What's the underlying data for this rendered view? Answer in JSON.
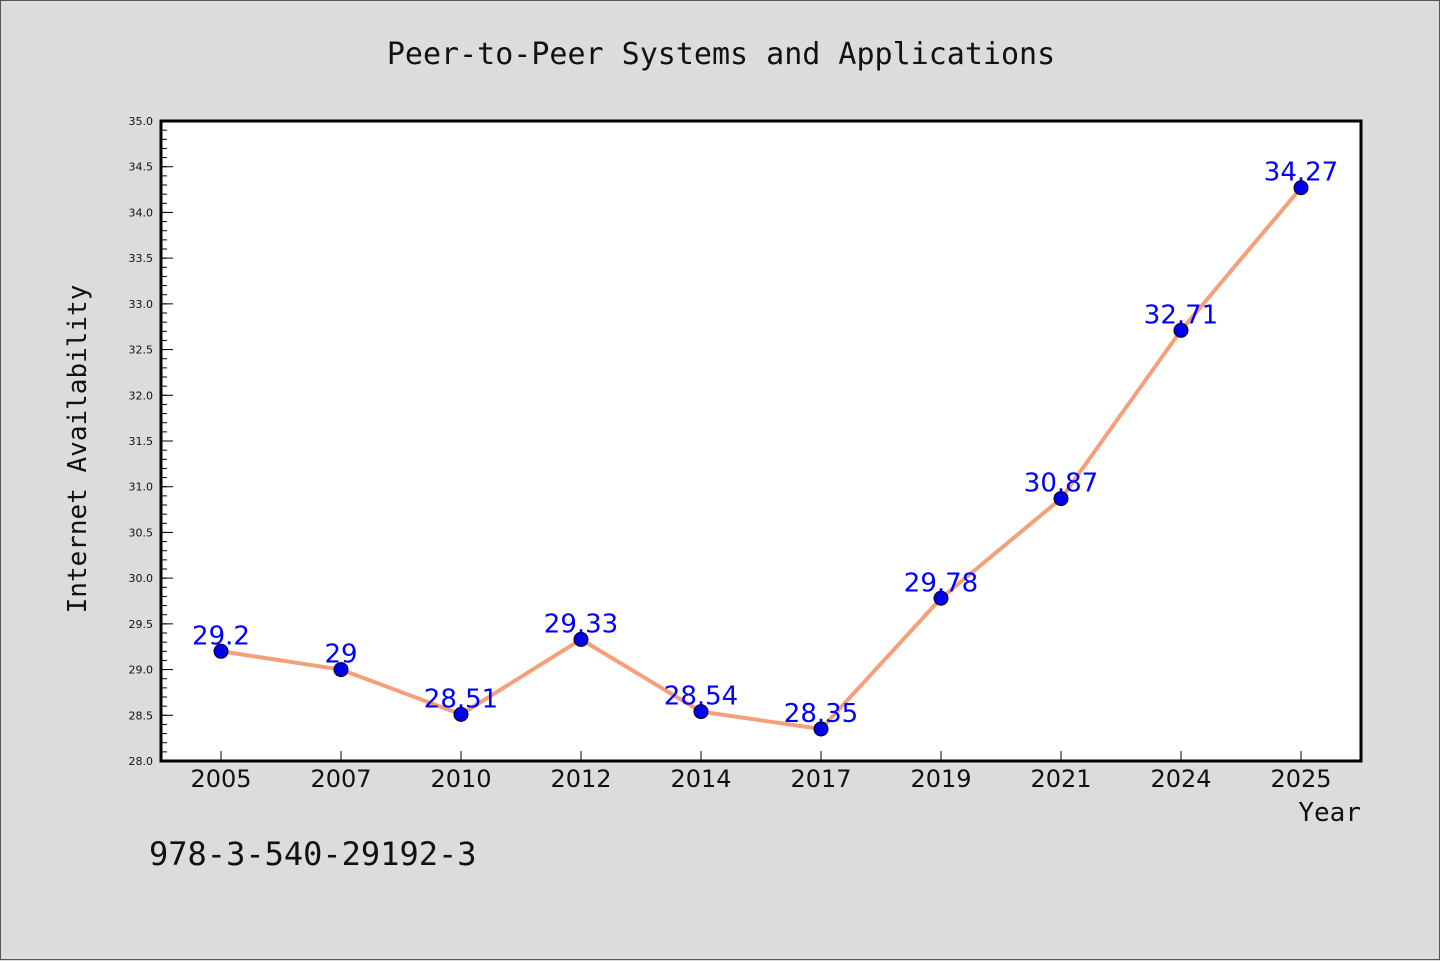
{
  "chart_data": {
    "type": "line",
    "title": "Peer-to-Peer Systems and Applications",
    "xlabel": "Year",
    "ylabel": "Internet Availability",
    "categories": [
      "2005",
      "2007",
      "2010",
      "2012",
      "2014",
      "2017",
      "2019",
      "2021",
      "2024",
      "2025"
    ],
    "series": [
      {
        "values": [
          29.2,
          29,
          28.51,
          29.33,
          28.54,
          28.35,
          29.78,
          30.87,
          32.71,
          34.27
        ],
        "labels": [
          "29.2",
          "29",
          "28.51",
          "29.33",
          "28.54",
          "28.35",
          "29.78",
          "30.87",
          "32.71",
          "34.27"
        ],
        "line_color": "#f4a07a",
        "marker_color": "#0000ee"
      }
    ],
    "ylim": [
      28.0,
      35.0
    ],
    "yticks": [
      "28.0",
      "28.5",
      "29.0",
      "29.5",
      "30.0",
      "30.5",
      "31.0",
      "31.5",
      "32.0",
      "32.5",
      "33.0",
      "33.5",
      "34.0",
      "34.5",
      "35.0"
    ],
    "grid": false,
    "legend": "none",
    "footnote": "978-3-540-29192-3",
    "colors": {
      "background": "#dcdcdc",
      "plot_background": "#ffffff",
      "data_label": "#0000ff"
    }
  }
}
